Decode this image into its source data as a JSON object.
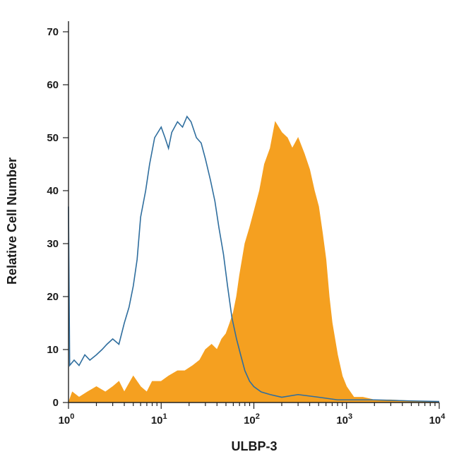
{
  "chart_data": {
    "type": "area",
    "xscale": "log",
    "xlim": [
      1,
      10000
    ],
    "ylim": [
      0,
      70
    ],
    "xlabel": "ULBP-3",
    "ylabel": "Relative Cell Number",
    "xticks": [
      {
        "value": 1,
        "base": "10",
        "exp": "0"
      },
      {
        "value": 10,
        "base": "10",
        "exp": "1"
      },
      {
        "value": 100,
        "base": "10",
        "exp": "2"
      },
      {
        "value": 1000,
        "base": "10",
        "exp": "3"
      },
      {
        "value": 10000,
        "base": "10",
        "exp": "4"
      }
    ],
    "yticks": [
      "0",
      "10",
      "20",
      "30",
      "40",
      "50",
      "60",
      "70"
    ],
    "series": [
      {
        "style": "filled",
        "color": "#f5a020",
        "points": [
          [
            1.0,
            0
          ],
          [
            1.1,
            2
          ],
          [
            1.3,
            1
          ],
          [
            1.6,
            2
          ],
          [
            2.0,
            3
          ],
          [
            2.5,
            2
          ],
          [
            3.0,
            3
          ],
          [
            3.5,
            4
          ],
          [
            4.0,
            2
          ],
          [
            5.0,
            5
          ],
          [
            6.0,
            3
          ],
          [
            7.0,
            2
          ],
          [
            8.0,
            4
          ],
          [
            10,
            4
          ],
          [
            12,
            5
          ],
          [
            15,
            6
          ],
          [
            18,
            6
          ],
          [
            22,
            7
          ],
          [
            26,
            8
          ],
          [
            30,
            10
          ],
          [
            35,
            11
          ],
          [
            40,
            10
          ],
          [
            45,
            12
          ],
          [
            50,
            13
          ],
          [
            55,
            15
          ],
          [
            60,
            17
          ],
          [
            65,
            20
          ],
          [
            70,
            24
          ],
          [
            80,
            30
          ],
          [
            90,
            33
          ],
          [
            100,
            36
          ],
          [
            115,
            40
          ],
          [
            130,
            45
          ],
          [
            150,
            48
          ],
          [
            170,
            53
          ],
          [
            200,
            51
          ],
          [
            230,
            50
          ],
          [
            260,
            48
          ],
          [
            300,
            50
          ],
          [
            350,
            47
          ],
          [
            400,
            44
          ],
          [
            450,
            40
          ],
          [
            500,
            37
          ],
          [
            550,
            32
          ],
          [
            600,
            27
          ],
          [
            650,
            20
          ],
          [
            700,
            15
          ],
          [
            800,
            9
          ],
          [
            900,
            5
          ],
          [
            1000,
            3
          ],
          [
            1200,
            1
          ],
          [
            1500,
            1
          ],
          [
            2000,
            0.5
          ],
          [
            3000,
            0.5
          ],
          [
            5000,
            0.3
          ],
          [
            8000,
            0.2
          ],
          [
            10000,
            0
          ]
        ]
      },
      {
        "style": "outline",
        "color": "#2f6e9e",
        "points": [
          [
            1.0,
            37
          ],
          [
            1.03,
            7
          ],
          [
            1.15,
            8
          ],
          [
            1.3,
            7
          ],
          [
            1.5,
            9
          ],
          [
            1.7,
            8
          ],
          [
            2.0,
            9
          ],
          [
            2.3,
            10
          ],
          [
            2.6,
            11
          ],
          [
            3.0,
            12
          ],
          [
            3.5,
            11
          ],
          [
            4.0,
            15
          ],
          [
            4.5,
            18
          ],
          [
            5.0,
            22
          ],
          [
            5.5,
            27
          ],
          [
            6.0,
            35
          ],
          [
            6.8,
            40
          ],
          [
            7.5,
            45
          ],
          [
            8.5,
            50
          ],
          [
            10,
            52
          ],
          [
            11,
            50
          ],
          [
            12,
            48
          ],
          [
            13,
            51
          ],
          [
            15,
            53
          ],
          [
            17,
            52
          ],
          [
            19,
            54
          ],
          [
            21,
            53
          ],
          [
            24,
            50
          ],
          [
            27,
            49
          ],
          [
            30,
            46
          ],
          [
            34,
            42
          ],
          [
            38,
            38
          ],
          [
            42,
            33
          ],
          [
            47,
            28
          ],
          [
            52,
            22
          ],
          [
            58,
            16
          ],
          [
            65,
            12
          ],
          [
            72,
            9
          ],
          [
            80,
            6
          ],
          [
            90,
            4
          ],
          [
            100,
            3
          ],
          [
            120,
            2
          ],
          [
            150,
            1.5
          ],
          [
            200,
            1
          ],
          [
            300,
            1.5
          ],
          [
            500,
            1
          ],
          [
            800,
            0.5
          ],
          [
            1000,
            0.5
          ],
          [
            2000,
            0.5
          ],
          [
            5000,
            0.3
          ],
          [
            10000,
            0.2
          ]
        ]
      }
    ]
  }
}
